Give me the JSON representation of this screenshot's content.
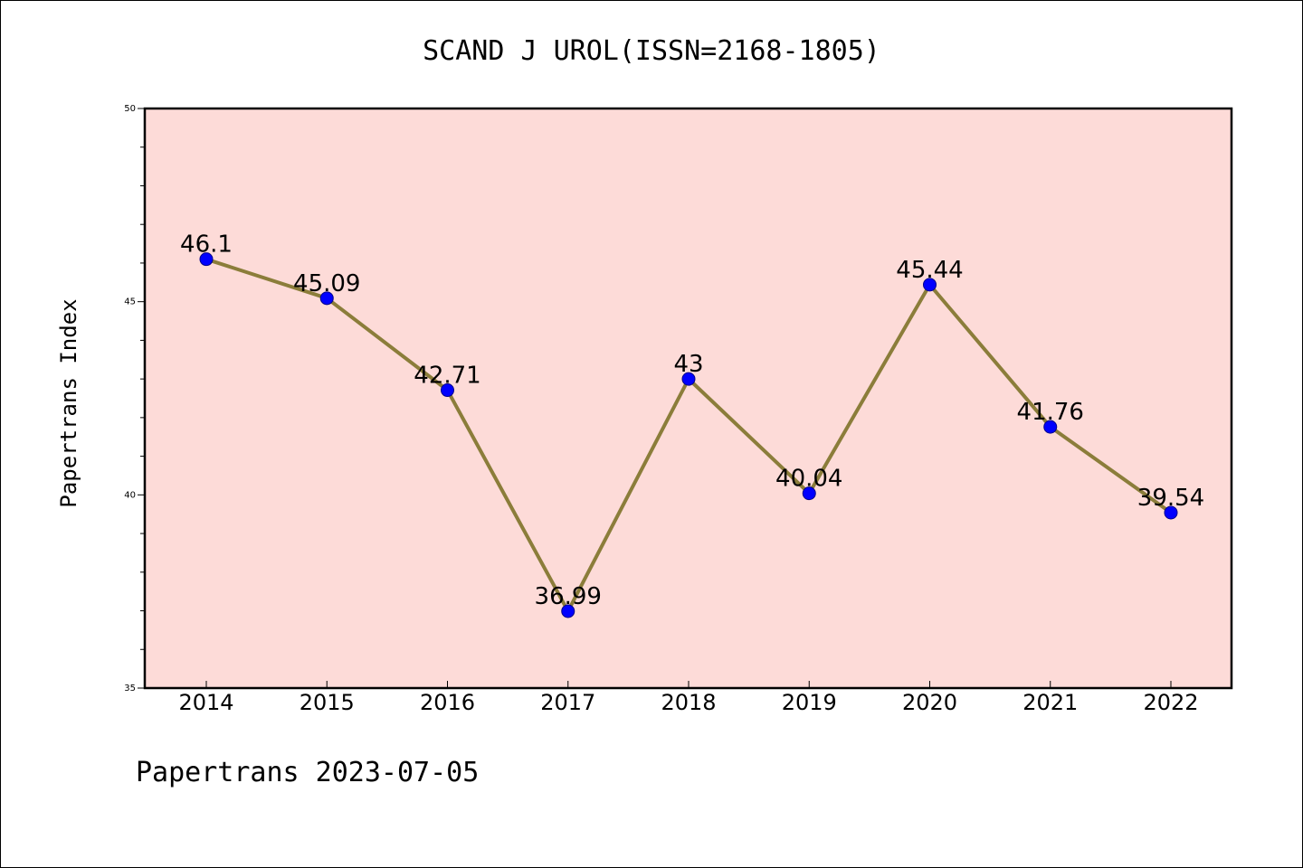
{
  "chart_data": {
    "type": "line",
    "title": "SCAND J UROL(ISSN=2168-1805)",
    "ylabel": "Papertrans Index",
    "xlabel": "",
    "categories": [
      "2014",
      "2015",
      "2016",
      "2017",
      "2018",
      "2019",
      "2020",
      "2021",
      "2022"
    ],
    "values": [
      46.1,
      45.09,
      42.71,
      36.99,
      43,
      40.04,
      45.44,
      41.76,
      39.54
    ],
    "data_labels": [
      "46.1",
      "45.09",
      "42.71",
      "36.99",
      "43",
      "40.04",
      "45.44",
      "41.76",
      "39.54"
    ],
    "ylim": [
      35,
      50
    ],
    "yticks": [
      35,
      40,
      45,
      50
    ],
    "grid": false,
    "legend": "none",
    "colors": {
      "plot_background": "#fddbd8",
      "line": "#8b7d3a",
      "marker": "#0000ff",
      "marker_edge": "#00008b"
    }
  },
  "footer": {
    "text": "Papertrans 2023-07-05"
  }
}
